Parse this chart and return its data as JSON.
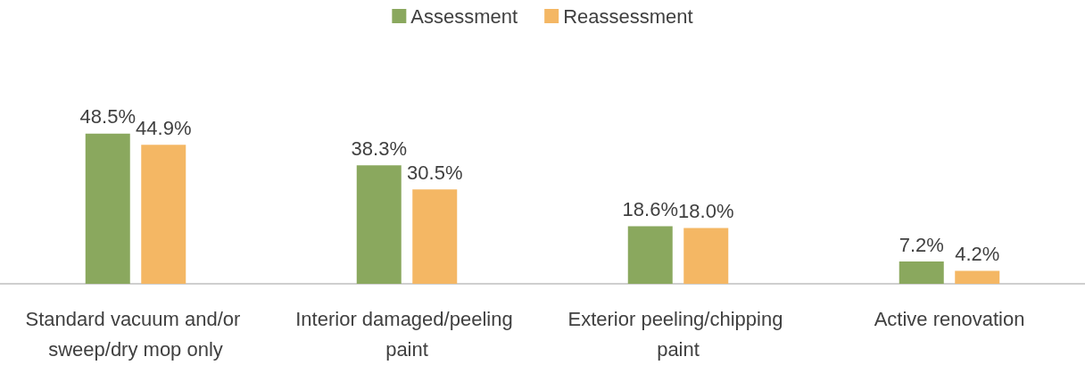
{
  "chart_data": {
    "type": "bar",
    "categories": [
      "Standard vacuum and/or sweep/dry mop only",
      "Interior damaged/peeling paint",
      "Exterior peeling/chipping paint",
      "Active renovation"
    ],
    "series": [
      {
        "name": "Assessment",
        "color": "#8aa85e",
        "values": [
          48.5,
          38.3,
          18.6,
          7.2
        ],
        "value_labels": [
          "48.5%",
          "38.3%",
          "18.6%",
          "7.2%"
        ]
      },
      {
        "name": "Reassessment",
        "color": "#f4b764",
        "values": [
          44.9,
          30.5,
          18.0,
          4.2
        ],
        "value_labels": [
          "44.9%",
          "30.5%",
          "18.0%",
          "4.2%"
        ]
      }
    ],
    "legend": "top"
  }
}
